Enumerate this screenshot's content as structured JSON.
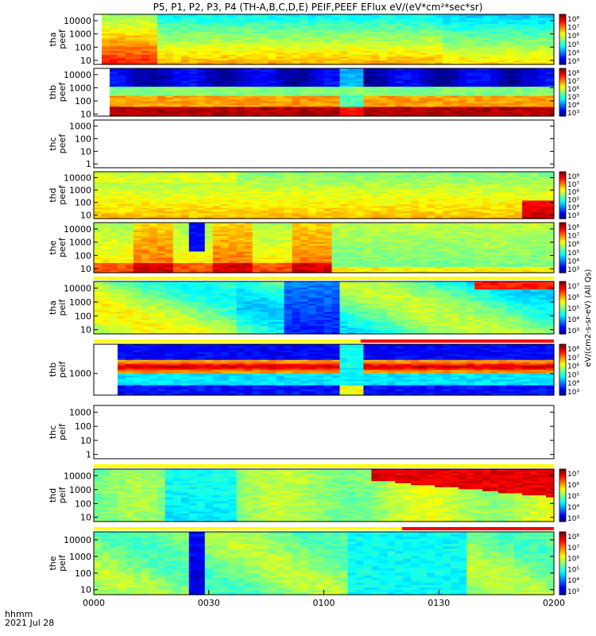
{
  "title": "P5, P1, P2, P3, P4 (TH-A,B,C,D,E) PEIF,PEEF EFlux eV/(eV*cm²*sec*sr)",
  "footer": {
    "time_label": "hhmm",
    "date_label": "2021 Jul 28"
  },
  "chart_data": {
    "type": "heatmap",
    "title": "P5, P1, P2, P3, P4 (TH-A,B,C,D,E) PEIF,PEEF EFlux eV/(eV*cm²*sec*sr)",
    "x_ticks": [
      "0000",
      "0030",
      "0100",
      "0130",
      "0200"
    ],
    "x_range_minutes": [
      0,
      120
    ],
    "colorbar_label": "eV/(cm2-s-sr-eV) (All Qs)",
    "panels": [
      {
        "label": [
          "tha",
          "peef"
        ],
        "yticks": [
          "10000",
          "1000",
          "100",
          "10"
        ],
        "ylim": [
          5,
          30000
        ],
        "log": true,
        "cbar": [
          "10⁸",
          "10⁷",
          "10⁶",
          "10⁵",
          "10⁴",
          "10³"
        ],
        "flag": null,
        "data_start_min": 3,
        "empty": false
      },
      {
        "label": [
          "thb",
          "peef"
        ],
        "yticks": [
          "10000",
          "1000",
          "100",
          "10"
        ],
        "ylim": [
          7,
          30000
        ],
        "log": true,
        "cbar": [
          "10⁸",
          "10⁷",
          "10⁶",
          "10⁵",
          "10⁴",
          "10³"
        ],
        "flag": null,
        "data_start_min": 5,
        "empty": false
      },
      {
        "label": [
          "thc",
          "peef"
        ],
        "yticks": [
          "1000",
          "100",
          "10",
          "1"
        ],
        "ylim": [
          0.5,
          3000
        ],
        "log": true,
        "cbar": [],
        "flag": null,
        "data_start_min": 0,
        "empty": true
      },
      {
        "label": [
          "thd",
          "peef"
        ],
        "yticks": [
          "10000",
          "1000",
          "100",
          "10"
        ],
        "ylim": [
          5,
          30000
        ],
        "log": true,
        "cbar": [
          "10⁸",
          "10⁷",
          "10⁶",
          "10⁵",
          "10⁴",
          "10³"
        ],
        "flag": null,
        "data_start_min": 0,
        "empty": false
      },
      {
        "label": [
          "the",
          "peef"
        ],
        "yticks": [
          "10000",
          "1000",
          "100",
          "10"
        ],
        "ylim": [
          5,
          30000
        ],
        "log": true,
        "cbar": [
          "10⁸",
          "10⁷",
          "10⁶",
          "10⁵",
          "10⁴",
          "10³"
        ],
        "flag": null,
        "data_start_min": 0,
        "empty": false
      },
      {
        "label": [
          "tha",
          "peif"
        ],
        "yticks": [
          "10000",
          "1000",
          "100",
          "10"
        ],
        "ylim": [
          5,
          30000
        ],
        "log": true,
        "cbar": [
          "10⁷",
          "10⁶",
          "10⁵",
          "10⁴",
          "10³"
        ],
        "flag": "yellow",
        "data_start_min": 0,
        "empty": false
      },
      {
        "label": [
          "thb",
          "peif"
        ],
        "yticks": [
          "1000"
        ],
        "ylim": [
          80,
          30000
        ],
        "log": true,
        "cbar": [
          "10⁸",
          "10⁷",
          "10⁶",
          "10⁵",
          "10⁴",
          "10³"
        ],
        "flag": "yellow-red",
        "data_start_min": 5,
        "empty": false
      },
      {
        "label": [
          "thc",
          "peif"
        ],
        "yticks": [
          "1000",
          "100",
          "10",
          "1"
        ],
        "ylim": [
          0.5,
          3000
        ],
        "log": true,
        "cbar": [],
        "flag": null,
        "data_start_min": 0,
        "empty": true
      },
      {
        "label": [
          "thd",
          "peif"
        ],
        "yticks": [
          "10000",
          "1000",
          "100",
          "10"
        ],
        "ylim": [
          5,
          30000
        ],
        "log": true,
        "cbar": [
          "10⁷",
          "10⁶",
          "10⁵",
          "10⁴",
          "10³"
        ],
        "flag": "yellow",
        "data_start_min": 0,
        "empty": false
      },
      {
        "label": [
          "the",
          "peif"
        ],
        "yticks": [
          "10000",
          "1000",
          "100",
          "10"
        ],
        "ylim": [
          5,
          30000
        ],
        "log": true,
        "cbar": [
          "10⁸",
          "10⁷",
          "10⁶",
          "10⁵",
          "10⁴",
          "10³"
        ],
        "flag": "yellow-red-late",
        "data_start_min": 0,
        "empty": false
      }
    ]
  }
}
